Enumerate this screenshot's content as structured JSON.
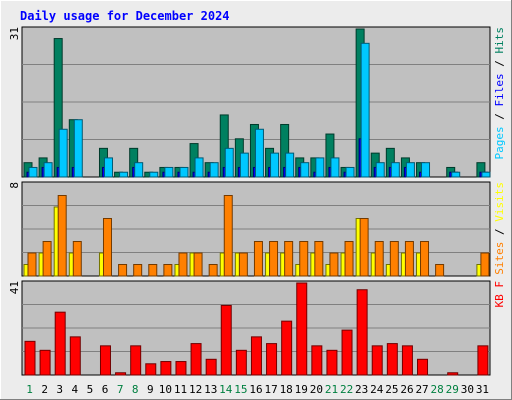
{
  "colors": {
    "hits": "#008060",
    "pages": "#00c8ff",
    "files": "#0000ff",
    "visits": "#ffff00",
    "sites": "#ff8000",
    "kbytes": "#ff0000",
    "title": "#0000ff",
    "weekday": "#000000",
    "weekend": "#008040",
    "plot_bg": "#c0c0c0",
    "frame_bg": "#ececec"
  },
  "chart_data": {
    "type": "bar",
    "title": "Daily usage for December 2024",
    "categories": [
      "1",
      "2",
      "3",
      "4",
      "5",
      "6",
      "7",
      "8",
      "9",
      "10",
      "11",
      "12",
      "13",
      "14",
      "15",
      "16",
      "17",
      "18",
      "19",
      "20",
      "21",
      "22",
      "23",
      "24",
      "25",
      "26",
      "27",
      "28",
      "29",
      "30",
      "31"
    ],
    "weekend_days": [
      "1",
      "7",
      "8",
      "14",
      "15",
      "21",
      "22",
      "28",
      "29"
    ],
    "panels": [
      {
        "id": "hits",
        "ymax": 31,
        "ymax_label": "31",
        "side_label_parts": [
          {
            "text": "Pages",
            "color_key": "pages"
          },
          {
            "text": " / ",
            "color_key": "weekday"
          },
          {
            "text": "Files",
            "color_key": "files"
          },
          {
            "text": " / ",
            "color_key": "weekday"
          },
          {
            "text": "Hits",
            "color_key": "hits"
          }
        ],
        "series": [
          {
            "name": "Hits",
            "color_key": "hits",
            "values": [
              3,
              4,
              29,
              12,
              0,
              6,
              1,
              6,
              1,
              2,
              2,
              7,
              3,
              13,
              8,
              11,
              6,
              11,
              4,
              4,
              9,
              2,
              31,
              5,
              6,
              4,
              3,
              0,
              2,
              0,
              3
            ]
          },
          {
            "name": "Files",
            "color_key": "files",
            "values": [
              1,
              2,
              2,
              2,
              0,
              2,
              0,
              2,
              0,
              1,
              1,
              1,
              1,
              2,
              2,
              2,
              2,
              2,
              2,
              1,
              2,
              1,
              8,
              2,
              2,
              2,
              1,
              0,
              1,
              0,
              1
            ]
          },
          {
            "name": "Pages",
            "color_key": "pages",
            "values": [
              2,
              3,
              10,
              12,
              0,
              4,
              1,
              3,
              1,
              2,
              2,
              4,
              3,
              6,
              5,
              10,
              5,
              5,
              3,
              4,
              4,
              2,
              28,
              3,
              3,
              3,
              3,
              0,
              1,
              0,
              1
            ]
          }
        ]
      },
      {
        "id": "visits",
        "ymax": 8,
        "ymax_label": "8",
        "side_label_parts": [
          {
            "text": "Sites",
            "color_key": "sites"
          },
          {
            "text": " / ",
            "color_key": "weekday"
          },
          {
            "text": "Visits",
            "color_key": "visits"
          }
        ],
        "series": [
          {
            "name": "Visits",
            "color_key": "visits",
            "values": [
              1,
              2,
              6,
              2,
              0,
              2,
              0,
              0,
              0,
              0,
              1,
              2,
              0,
              2,
              2,
              0,
              2,
              2,
              1,
              2,
              1,
              2,
              5,
              2,
              1,
              2,
              2,
              0,
              0,
              0,
              1
            ]
          },
          {
            "name": "Sites",
            "color_key": "sites",
            "values": [
              2,
              3,
              7,
              3,
              0,
              5,
              1,
              1,
              1,
              1,
              2,
              2,
              1,
              7,
              2,
              3,
              3,
              3,
              3,
              3,
              2,
              3,
              5,
              3,
              3,
              3,
              3,
              1,
              0,
              0,
              2
            ]
          }
        ]
      },
      {
        "id": "kbytes",
        "ymax": 41,
        "ymax_label": "41",
        "side_label_parts": [
          {
            "text": "KB F",
            "color_key": "kbytes"
          }
        ],
        "series": [
          {
            "name": "KB F",
            "color_key": "kbytes",
            "values": [
              15,
              11,
              28,
              17,
              0,
              13,
              1,
              13,
              5,
              6,
              6,
              14,
              7,
              31,
              11,
              17,
              14,
              24,
              41,
              13,
              11,
              20,
              38,
              13,
              14,
              13,
              7,
              0,
              1,
              0,
              13
            ]
          }
        ]
      }
    ]
  }
}
